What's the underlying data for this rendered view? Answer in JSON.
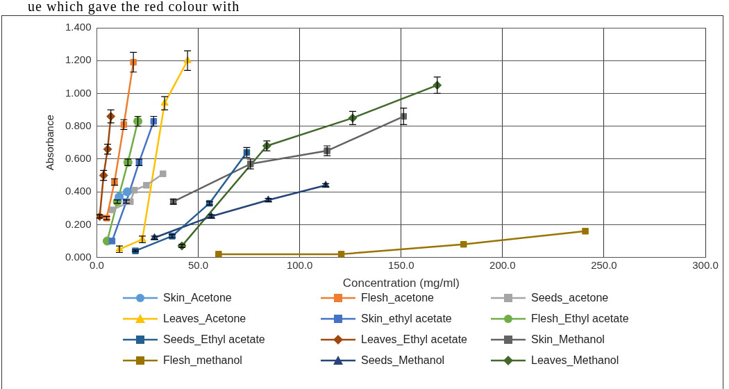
{
  "chart_data": {
    "type": "line",
    "xlabel": "Concentration (mg/ml)",
    "ylabel": "Absorbance",
    "annotations": [
      "ue which gave the red colour with"
    ],
    "xlim": [
      0,
      300
    ],
    "xticks": [
      {
        "value": 0,
        "label": "0.0"
      },
      {
        "value": 50,
        "label": "50.0"
      },
      {
        "value": 100,
        "label": "100.0"
      },
      {
        "value": 150,
        "label": "150.0"
      },
      {
        "value": 200,
        "label": "200.0"
      },
      {
        "value": 250,
        "label": "250.0"
      },
      {
        "value": 300,
        "label": "300.0"
      }
    ],
    "ylim": [
      0,
      1.4
    ],
    "yticks": [
      {
        "value": 0,
        "label": "0.000"
      },
      {
        "value": 0.2,
        "label": "0.200"
      },
      {
        "value": 0.4,
        "label": "0.400"
      },
      {
        "value": 0.6,
        "label": "0.600"
      },
      {
        "value": 0.8,
        "label": "0.800"
      },
      {
        "value": 1,
        "label": "1.000"
      },
      {
        "value": 1.2,
        "label": "1.200"
      },
      {
        "value": 1.4,
        "label": "1.400"
      }
    ],
    "grid": true,
    "legend": "bottom",
    "series": [
      {
        "name": "Skin_Acetone",
        "color": "#5b9bd5",
        "marker": "circle",
        "x": [
          11,
          15
        ],
        "values": [
          0.37,
          0.4
        ]
      },
      {
        "name": "Flesh_acetone",
        "color": "#ed7d31",
        "marker": "square",
        "x": [
          4.8,
          8.7,
          13.3,
          18
        ],
        "values": [
          0.24,
          0.46,
          0.81,
          1.19
        ],
        "errors": [
          0.01,
          0.02,
          0.03,
          0.06
        ]
      },
      {
        "name": "Seeds_acetone",
        "color": "#a5a5a5",
        "marker": "square",
        "x": [
          7.5,
          16.5,
          18.5,
          24.4,
          32.6
        ],
        "values": [
          0.29,
          0.34,
          0.41,
          0.44,
          0.51
        ]
      },
      {
        "name": "Leaves_Acetone",
        "color": "#ffc000",
        "marker": "triangle",
        "x": [
          11.1,
          22.4,
          33.4,
          44.7
        ],
        "values": [
          0.05,
          0.11,
          0.94,
          1.2
        ],
        "errors": [
          0.02,
          0.02,
          0.04,
          0.06
        ]
      },
      {
        "name": "Skin_ethyl acetate",
        "color": "#4472c4",
        "marker": "square",
        "x": [
          7.5,
          14.5,
          20.8,
          28
        ],
        "values": [
          0.1,
          0.34,
          0.58,
          0.83
        ],
        "errors": [
          null,
          0.01,
          0.02,
          0.03
        ]
      },
      {
        "name": "Flesh_Ethyl acetate",
        "color": "#70ad47",
        "marker": "circle",
        "x": [
          5.1,
          10.1,
          15.3,
          20.2
        ],
        "values": [
          0.1,
          0.34,
          0.58,
          0.83
        ],
        "errors": [
          null,
          0.01,
          0.02,
          0.03
        ]
      },
      {
        "name": "Seeds_Ethyl acetate",
        "color": "#255e91",
        "marker": "square",
        "x": [
          19,
          37.1,
          55.5,
          73.9
        ],
        "values": [
          0.04,
          0.13,
          0.33,
          0.64
        ],
        "errors": [
          0.005,
          0.01,
          0.01,
          0.03
        ]
      },
      {
        "name": "Leaves_Ethyl acetate",
        "color": "#9e480e",
        "marker": "diamond",
        "x": [
          1.4,
          3.3,
          5.3,
          6.9
        ],
        "values": [
          0.25,
          0.5,
          0.66,
          0.86
        ],
        "errors": [
          0.01,
          0.03,
          0.03,
          0.04
        ]
      },
      {
        "name": "Skin_Methanol",
        "color": "#636363",
        "marker": "square",
        "x": [
          37.7,
          75.7,
          113.5,
          151.2
        ],
        "values": [
          0.34,
          0.57,
          0.65,
          0.86
        ],
        "errors": [
          0.015,
          0.03,
          0.03,
          0.05
        ]
      },
      {
        "name": "Flesh_methanol",
        "color": "#997300",
        "marker": "square",
        "x": [
          60,
          120.5,
          180.8,
          240.8
        ],
        "values": [
          0.02,
          0.02,
          0.08,
          0.16
        ]
      },
      {
        "name": "Seeds_Methanol",
        "color": "#264478",
        "marker": "triangle",
        "x": [
          28.4,
          56.4,
          84.5,
          112.8
        ],
        "values": [
          0.12,
          0.25,
          0.35,
          0.44
        ],
        "errors": [
          0.01,
          0.01,
          0.01,
          0.01
        ]
      },
      {
        "name": "Leaves_Methanol",
        "color": "#43682b",
        "marker": "diamond",
        "x": [
          41.9,
          83.8,
          126.1,
          167.8
        ],
        "values": [
          0.07,
          0.68,
          0.85,
          1.05
        ],
        "errors": [
          0.01,
          0.03,
          0.04,
          0.05
        ]
      }
    ]
  }
}
